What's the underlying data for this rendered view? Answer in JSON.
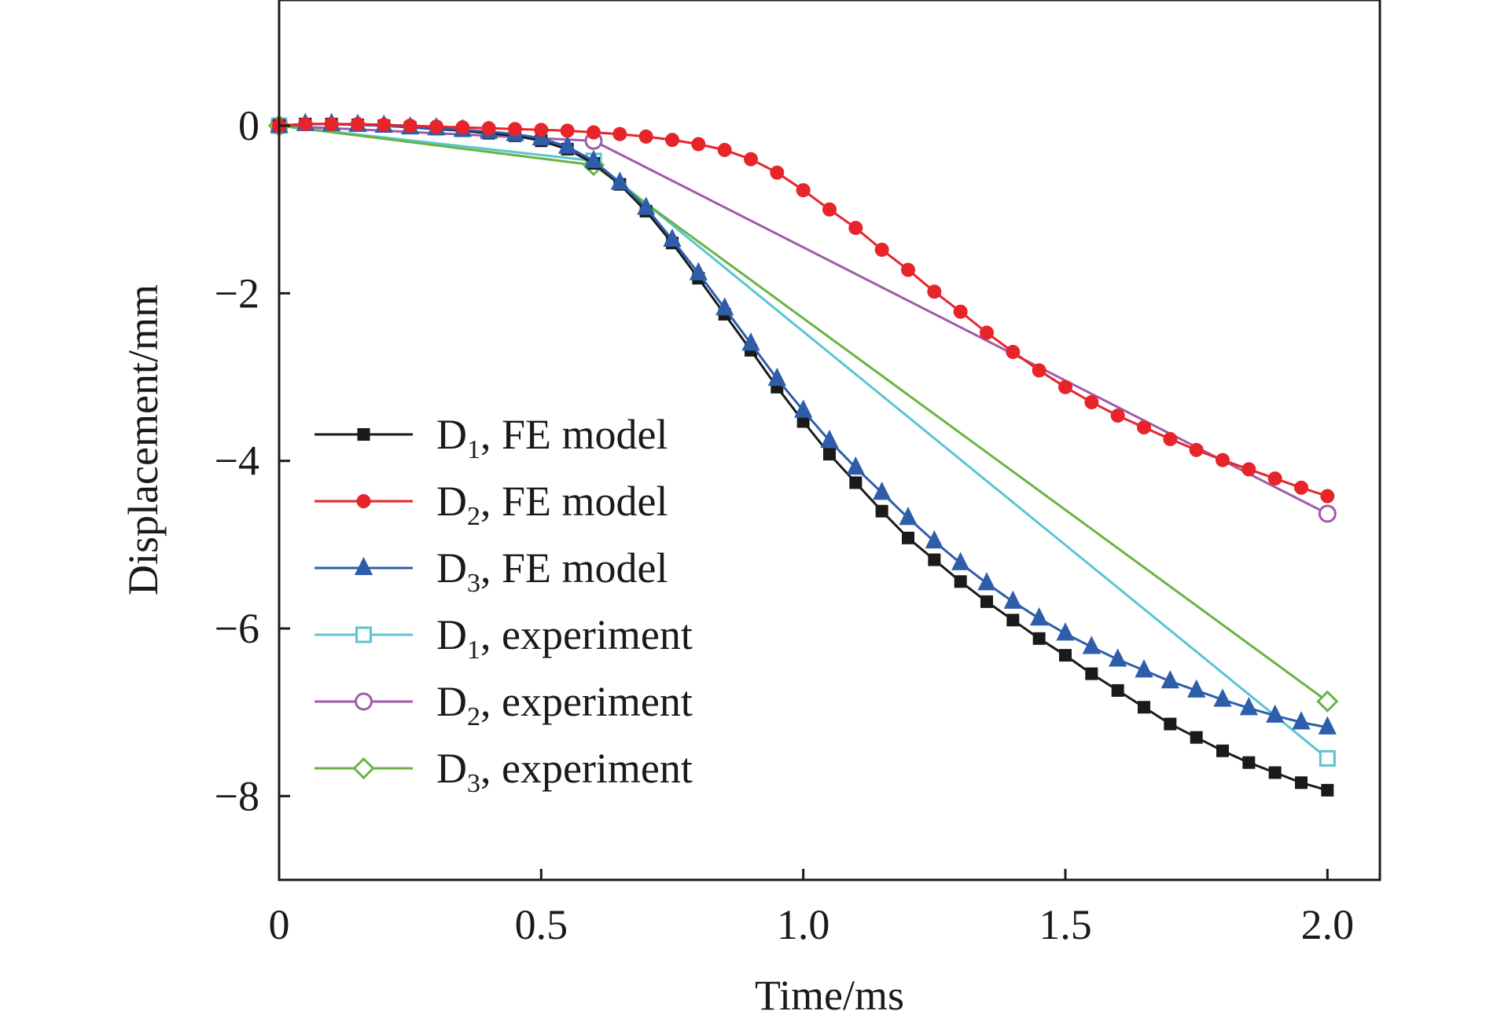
{
  "chart_data": {
    "type": "line",
    "xlabel": "Time/ms",
    "ylabel": "Displacement/mm",
    "xlim": [
      0,
      2.1
    ],
    "ylim": [
      -9,
      1.5
    ],
    "xticks": [
      0,
      0.5,
      1.0,
      1.5,
      2.0
    ],
    "xtick_labels": [
      "0",
      "0.5",
      "1.0",
      "1.5",
      "2.0"
    ],
    "yticks": [
      0,
      -2,
      -4,
      -6,
      -8
    ],
    "ytick_labels": [
      "0",
      "−2",
      "−4",
      "−6",
      "−8"
    ],
    "grid": false,
    "legend_position": "left",
    "series": [
      {
        "name": "D1, FE model",
        "label_main": "D",
        "label_sub": "1",
        "label_rest": ", FE model",
        "color": "#1a1a1a",
        "marker": "square-filled",
        "x": [
          0,
          0.05,
          0.1,
          0.15,
          0.2,
          0.25,
          0.3,
          0.35,
          0.4,
          0.45,
          0.5,
          0.55,
          0.6,
          0.65,
          0.7,
          0.75,
          0.8,
          0.85,
          0.9,
          0.95,
          1.0,
          1.05,
          1.1,
          1.15,
          1.2,
          1.25,
          1.3,
          1.35,
          1.4,
          1.45,
          1.5,
          1.55,
          1.6,
          1.65,
          1.7,
          1.75,
          1.8,
          1.85,
          1.9,
          1.95,
          2.0
        ],
        "y": [
          0,
          0.02,
          0.02,
          0.01,
          0,
          -0.02,
          -0.04,
          -0.06,
          -0.09,
          -0.12,
          -0.18,
          -0.28,
          -0.45,
          -0.7,
          -1.02,
          -1.4,
          -1.82,
          -2.25,
          -2.68,
          -3.12,
          -3.53,
          -3.92,
          -4.26,
          -4.6,
          -4.92,
          -5.18,
          -5.44,
          -5.68,
          -5.9,
          -6.12,
          -6.32,
          -6.54,
          -6.74,
          -6.94,
          -7.14,
          -7.3,
          -7.46,
          -7.6,
          -7.72,
          -7.84,
          -7.93
        ]
      },
      {
        "name": "D2, FE model",
        "label_main": "D",
        "label_sub": "2",
        "label_rest": ", FE model",
        "color": "#e8242b",
        "marker": "circle-filled",
        "x": [
          0,
          0.05,
          0.1,
          0.15,
          0.2,
          0.25,
          0.3,
          0.35,
          0.4,
          0.45,
          0.5,
          0.55,
          0.6,
          0.65,
          0.7,
          0.75,
          0.8,
          0.85,
          0.9,
          0.95,
          1.0,
          1.05,
          1.1,
          1.15,
          1.2,
          1.25,
          1.3,
          1.35,
          1.4,
          1.45,
          1.5,
          1.55,
          1.6,
          1.65,
          1.7,
          1.75,
          1.8,
          1.85,
          1.9,
          1.95,
          2.0
        ],
        "y": [
          0,
          0.02,
          0.02,
          0.02,
          0.01,
          0,
          -0.01,
          -0.02,
          -0.03,
          -0.04,
          -0.05,
          -0.06,
          -0.08,
          -0.1,
          -0.13,
          -0.17,
          -0.22,
          -0.29,
          -0.4,
          -0.56,
          -0.77,
          -1.0,
          -1.22,
          -1.48,
          -1.72,
          -1.98,
          -2.22,
          -2.47,
          -2.7,
          -2.92,
          -3.12,
          -3.3,
          -3.46,
          -3.6,
          -3.74,
          -3.87,
          -3.99,
          -4.1,
          -4.21,
          -4.32,
          -4.42
        ]
      },
      {
        "name": "D3, FE model",
        "label_main": "D",
        "label_sub": "3",
        "label_rest": ", FE model",
        "color": "#2e5eaa",
        "marker": "triangle-filled",
        "x": [
          0,
          0.05,
          0.1,
          0.15,
          0.2,
          0.25,
          0.3,
          0.35,
          0.4,
          0.45,
          0.5,
          0.55,
          0.6,
          0.65,
          0.7,
          0.75,
          0.8,
          0.85,
          0.9,
          0.95,
          1.0,
          1.05,
          1.1,
          1.15,
          1.2,
          1.25,
          1.3,
          1.35,
          1.4,
          1.45,
          1.5,
          1.55,
          1.6,
          1.65,
          1.7,
          1.75,
          1.8,
          1.85,
          1.9,
          1.95,
          2.0
        ],
        "y": [
          0,
          0.02,
          0.02,
          0.01,
          0,
          -0.02,
          -0.03,
          -0.05,
          -0.07,
          -0.1,
          -0.15,
          -0.25,
          -0.42,
          -0.68,
          -0.98,
          -1.36,
          -1.76,
          -2.18,
          -2.6,
          -3.02,
          -3.4,
          -3.76,
          -4.08,
          -4.38,
          -4.68,
          -4.96,
          -5.22,
          -5.46,
          -5.68,
          -5.88,
          -6.06,
          -6.22,
          -6.37,
          -6.5,
          -6.63,
          -6.74,
          -6.85,
          -6.95,
          -7.04,
          -7.12,
          -7.18
        ]
      },
      {
        "name": "D1, experiment",
        "label_main": "D",
        "label_sub": "1",
        "label_rest": ", experiment",
        "color": "#5bc4d1",
        "marker": "square-open",
        "x": [
          0,
          0.6,
          2.0
        ],
        "y": [
          0,
          -0.42,
          -7.55
        ]
      },
      {
        "name": "D2, experiment",
        "label_main": "D",
        "label_sub": "2",
        "label_rest": ", experiment",
        "color": "#a05aa8",
        "marker": "circle-open",
        "x": [
          0,
          0.6,
          2.0
        ],
        "y": [
          0,
          -0.18,
          -4.63
        ]
      },
      {
        "name": "D3, experiment",
        "label_main": "D",
        "label_sub": "3",
        "label_rest": ", experiment",
        "color": "#6ab342",
        "marker": "diamond-open",
        "x": [
          0,
          0.6,
          2.0
        ],
        "y": [
          0,
          -0.47,
          -6.87
        ]
      }
    ]
  }
}
